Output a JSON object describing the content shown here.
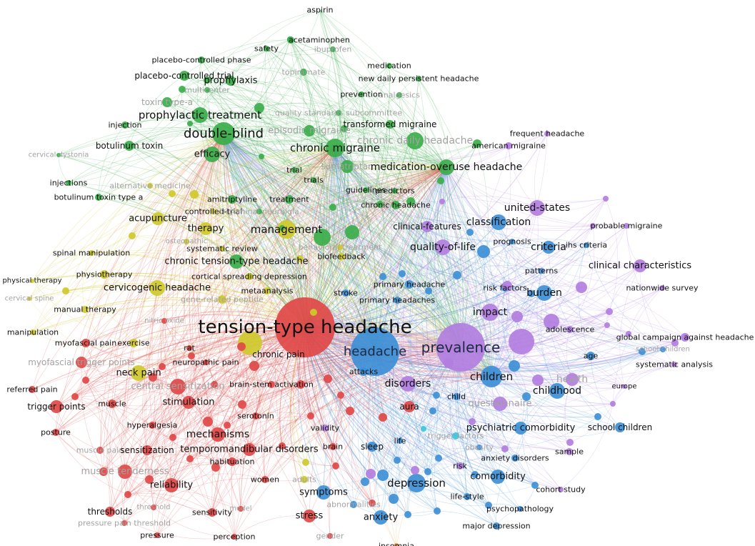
{
  "colors": {
    "red": "#e04848",
    "green": "#3aae4a",
    "blue": "#3d8fd6",
    "purple": "#b27ee0",
    "yellow": "#cfc92c",
    "cyan": "#39c6dc",
    "orange": "#f0a040"
  },
  "nodes": [
    {
      "label": "aspirin",
      "cluster": "green",
      "weight": 1,
      "dim": false
    },
    {
      "label": "safety",
      "cluster": "green",
      "weight": 1,
      "dim": false
    },
    {
      "label": "acetaminophen",
      "cluster": "green",
      "weight": 1,
      "dim": false
    },
    {
      "label": "ibuprofen",
      "cluster": "green",
      "weight": 1,
      "dim": true
    },
    {
      "label": "placebo-controlled phase",
      "cluster": "green",
      "weight": 1,
      "dim": false
    },
    {
      "label": "medication",
      "cluster": "green",
      "weight": 1,
      "dim": false
    },
    {
      "label": "new daily persistent headache",
      "cluster": "green",
      "weight": 1,
      "dim": false
    },
    {
      "label": "placebo-controlled trial",
      "cluster": "green",
      "weight": 2,
      "dim": false
    },
    {
      "label": "prophylaxis",
      "cluster": "green",
      "weight": 2,
      "dim": false
    },
    {
      "label": "topiramate",
      "cluster": "green",
      "weight": 1,
      "dim": true
    },
    {
      "label": "multicenter",
      "cluster": "green",
      "weight": 1,
      "dim": true
    },
    {
      "label": "prevention",
      "cluster": "green",
      "weight": 1,
      "dim": false
    },
    {
      "label": "analgesics",
      "cluster": "green",
      "weight": 1,
      "dim": true
    },
    {
      "label": "toxin type-a",
      "cluster": "green",
      "weight": 1,
      "dim": true
    },
    {
      "label": "prophylactic treatment",
      "cluster": "green",
      "weight": 3,
      "dim": false
    },
    {
      "label": "quality standards subcommittee",
      "cluster": "green",
      "weight": 1,
      "dim": true
    },
    {
      "label": "injection",
      "cluster": "green",
      "weight": 1,
      "dim": false
    },
    {
      "label": "transformed migraine",
      "cluster": "green",
      "weight": 1,
      "dim": false
    },
    {
      "label": "frequent headache",
      "cluster": "purple",
      "weight": 1,
      "dim": false
    },
    {
      "label": "double-blind",
      "cluster": "green",
      "weight": 4,
      "dim": false
    },
    {
      "label": "chronic migraine",
      "cluster": "green",
      "weight": 3,
      "dim": false
    },
    {
      "label": "episodic migraine",
      "cluster": "green",
      "weight": 2,
      "dim": true
    },
    {
      "label": "chronic daily headache",
      "cluster": "green",
      "weight": 3,
      "dim": true
    },
    {
      "label": "botulinum toxin",
      "cluster": "green",
      "weight": 2,
      "dim": false
    },
    {
      "label": "american migraine",
      "cluster": "purple",
      "weight": 1,
      "dim": false
    },
    {
      "label": "cervical dystonia",
      "cluster": "green",
      "weight": 1,
      "dim": true
    },
    {
      "label": "efficacy",
      "cluster": "green",
      "weight": 3,
      "dim": false
    },
    {
      "label": "sumatriptan",
      "cluster": "green",
      "weight": 2,
      "dim": true
    },
    {
      "label": "medication-overuse headache",
      "cluster": "green",
      "weight": 3,
      "dim": false
    },
    {
      "label": "trial",
      "cluster": "green",
      "weight": 1,
      "dim": false
    },
    {
      "label": "trials",
      "cluster": "green",
      "weight": 1,
      "dim": false
    },
    {
      "label": "injections",
      "cluster": "green",
      "weight": 1,
      "dim": false
    },
    {
      "label": "alternative medicine",
      "cluster": "yellow",
      "weight": 1,
      "dim": true
    },
    {
      "label": "guidelines",
      "cluster": "green",
      "weight": 1,
      "dim": false
    },
    {
      "label": "predictors",
      "cluster": "green",
      "weight": 1,
      "dim": false
    },
    {
      "label": "botulinum toxin type a",
      "cluster": "green",
      "weight": 1,
      "dim": false
    },
    {
      "label": "amitriptyline",
      "cluster": "green",
      "weight": 1,
      "dim": false
    },
    {
      "label": "treatment",
      "cluster": "green",
      "weight": 1,
      "dim": false
    },
    {
      "label": "chronic headache",
      "cluster": "green",
      "weight": 1,
      "dim": false
    },
    {
      "label": "united-states",
      "cluster": "purple",
      "weight": 2,
      "dim": false
    },
    {
      "label": "controlled-trial",
      "cluster": "yellow",
      "weight": 1,
      "dim": false
    },
    {
      "label": "trigeminal neuralgia",
      "cluster": "green",
      "weight": 1,
      "dim": true
    },
    {
      "label": "acupuncture",
      "cluster": "yellow",
      "weight": 2,
      "dim": false
    },
    {
      "label": "classification",
      "cluster": "blue",
      "weight": 2,
      "dim": false
    },
    {
      "label": "probable migraine",
      "cluster": "purple",
      "weight": 1,
      "dim": false
    },
    {
      "label": "therapy",
      "cluster": "yellow",
      "weight": 2,
      "dim": false
    },
    {
      "label": "management",
      "cluster": "yellow",
      "weight": 3,
      "dim": false
    },
    {
      "label": "clinical-features",
      "cluster": "purple",
      "weight": 1,
      "dim": false
    },
    {
      "label": "osteopathic",
      "cluster": "yellow",
      "weight": 1,
      "dim": true
    },
    {
      "label": "prognosis",
      "cluster": "blue",
      "weight": 1,
      "dim": false
    },
    {
      "label": "ihs criteria",
      "cluster": "blue",
      "weight": 1,
      "dim": false
    },
    {
      "label": "quality-of-life",
      "cluster": "purple",
      "weight": 2,
      "dim": false
    },
    {
      "label": "criteria",
      "cluster": "blue",
      "weight": 2,
      "dim": false
    },
    {
      "label": "systematic review",
      "cluster": "yellow",
      "weight": 1,
      "dim": false
    },
    {
      "label": "behavioral treatment",
      "cluster": "yellow",
      "weight": 1,
      "dim": true
    },
    {
      "label": "biofeedback",
      "cluster": "yellow",
      "weight": 1,
      "dim": false
    },
    {
      "label": "spinal manipulation",
      "cluster": "yellow",
      "weight": 1,
      "dim": false
    },
    {
      "label": "chronic tension-type headache",
      "cluster": "green",
      "weight": 2,
      "dim": false
    },
    {
      "label": "clinical characteristics",
      "cluster": "purple",
      "weight": 2,
      "dim": false
    },
    {
      "label": "patterns",
      "cluster": "blue",
      "weight": 1,
      "dim": false
    },
    {
      "label": "physiotherapy",
      "cluster": "yellow",
      "weight": 1,
      "dim": false
    },
    {
      "label": "cortical spreading depression",
      "cluster": "yellow",
      "weight": 1,
      "dim": false
    },
    {
      "label": "physical therapy",
      "cluster": "yellow",
      "weight": 1,
      "dim": false
    },
    {
      "label": "primary headache",
      "cluster": "blue",
      "weight": 1,
      "dim": false
    },
    {
      "label": "risk factors",
      "cluster": "blue",
      "weight": 1,
      "dim": false
    },
    {
      "label": "nationwide survey",
      "cluster": "purple",
      "weight": 1,
      "dim": false
    },
    {
      "label": "cervicogenic headache",
      "cluster": "yellow",
      "weight": 2,
      "dim": false
    },
    {
      "label": "burden",
      "cluster": "blue",
      "weight": 2,
      "dim": false
    },
    {
      "label": "cervical spine",
      "cluster": "yellow",
      "weight": 1,
      "dim": true
    },
    {
      "label": "gene-related peptide",
      "cluster": "yellow",
      "weight": 1,
      "dim": true
    },
    {
      "label": "metaanalysis",
      "cluster": "yellow",
      "weight": 1,
      "dim": false
    },
    {
      "label": "stroke",
      "cluster": "blue",
      "weight": 1,
      "dim": false
    },
    {
      "label": "primary headaches",
      "cluster": "blue",
      "weight": 1,
      "dim": false
    },
    {
      "label": "manual therapy",
      "cluster": "yellow",
      "weight": 1,
      "dim": false
    },
    {
      "label": "nitric oxide",
      "cluster": "red",
      "weight": 1,
      "dim": true
    },
    {
      "label": "impact",
      "cluster": "purple",
      "weight": 2,
      "dim": false
    },
    {
      "label": "tension-type headache",
      "cluster": "red",
      "weight": 6,
      "dim": false
    },
    {
      "label": "adolescence",
      "cluster": "purple",
      "weight": 1,
      "dim": false
    },
    {
      "label": "manipulation",
      "cluster": "yellow",
      "weight": 1,
      "dim": false
    },
    {
      "label": "global campaign against headache",
      "cluster": "purple",
      "weight": 1,
      "dim": false
    },
    {
      "label": "myofascial pain",
      "cluster": "red",
      "weight": 1,
      "dim": false
    },
    {
      "label": "exercise",
      "cluster": "yellow",
      "weight": 1,
      "dim": false
    },
    {
      "label": "rat",
      "cluster": "red",
      "weight": 1,
      "dim": false
    },
    {
      "label": "headache",
      "cluster": "blue",
      "weight": 5,
      "dim": false
    },
    {
      "label": "prevalence",
      "cluster": "purple",
      "weight": 5,
      "dim": false
    },
    {
      "label": "school-children",
      "cluster": "blue",
      "weight": 1,
      "dim": true
    },
    {
      "label": "age",
      "cluster": "blue",
      "weight": 1,
      "dim": false
    },
    {
      "label": "myofascial trigger points",
      "cluster": "red",
      "weight": 2,
      "dim": true
    },
    {
      "label": "chronic pain",
      "cluster": "yellow",
      "weight": 2,
      "dim": false
    },
    {
      "label": "systematic analysis",
      "cluster": "purple",
      "weight": 1,
      "dim": false
    },
    {
      "label": "neuropathic pain",
      "cluster": "red",
      "weight": 1,
      "dim": false
    },
    {
      "label": "attacks",
      "cluster": "blue",
      "weight": 1,
      "dim": false
    },
    {
      "label": "health",
      "cluster": "purple",
      "weight": 2,
      "dim": true
    },
    {
      "label": "neck pain",
      "cluster": "yellow",
      "weight": 2,
      "dim": false
    },
    {
      "label": "children",
      "cluster": "blue",
      "weight": 3,
      "dim": false
    },
    {
      "label": "disorders",
      "cluster": "purple",
      "weight": 2,
      "dim": false
    },
    {
      "label": "europe",
      "cluster": "purple",
      "weight": 1,
      "dim": false
    },
    {
      "label": "central sensitization",
      "cluster": "red",
      "weight": 2,
      "dim": true
    },
    {
      "label": "brain-stem activation",
      "cluster": "red",
      "weight": 1,
      "dim": false
    },
    {
      "label": "childhood",
      "cluster": "blue",
      "weight": 2,
      "dim": false
    },
    {
      "label": "referred pain",
      "cluster": "red",
      "weight": 1,
      "dim": false
    },
    {
      "label": "child",
      "cluster": "blue",
      "weight": 1,
      "dim": false
    },
    {
      "label": "questionnaire",
      "cluster": "purple",
      "weight": 2,
      "dim": true
    },
    {
      "label": "trigger points",
      "cluster": "red",
      "weight": 2,
      "dim": false
    },
    {
      "label": "muscle",
      "cluster": "red",
      "weight": 1,
      "dim": false
    },
    {
      "label": "stimulation",
      "cluster": "red",
      "weight": 2,
      "dim": false
    },
    {
      "label": "aura",
      "cluster": "red",
      "weight": 2,
      "dim": false
    },
    {
      "label": "serotonin",
      "cluster": "red",
      "weight": 1,
      "dim": false
    },
    {
      "label": "psychiatric comorbidity",
      "cluster": "blue",
      "weight": 2,
      "dim": false
    },
    {
      "label": "school children",
      "cluster": "blue",
      "weight": 1,
      "dim": false
    },
    {
      "label": "hyperalgesia",
      "cluster": "red",
      "weight": 1,
      "dim": false
    },
    {
      "label": "posture",
      "cluster": "red",
      "weight": 1,
      "dim": false
    },
    {
      "label": "mechanisms",
      "cluster": "red",
      "weight": 2,
      "dim": false
    },
    {
      "label": "validity",
      "cluster": "purple",
      "weight": 1,
      "dim": false
    },
    {
      "label": "trigger factors",
      "cluster": "cyan",
      "weight": 1,
      "dim": true
    },
    {
      "label": "sample",
      "cluster": "purple",
      "weight": 1,
      "dim": false
    },
    {
      "label": "muscle pain",
      "cluster": "red",
      "weight": 1,
      "dim": true
    },
    {
      "label": "sensitization",
      "cluster": "red",
      "weight": 1,
      "dim": false
    },
    {
      "label": "temporomandibular disorders",
      "cluster": "red",
      "weight": 2,
      "dim": false
    },
    {
      "label": "obesity",
      "cluster": "blue",
      "weight": 1,
      "dim": true
    },
    {
      "label": "anxiety disorders",
      "cluster": "blue",
      "weight": 1,
      "dim": false
    },
    {
      "label": "brain",
      "cluster": "red",
      "weight": 1,
      "dim": false
    },
    {
      "label": "sleep",
      "cluster": "blue",
      "weight": 1,
      "dim": false
    },
    {
      "label": "life",
      "cluster": "blue",
      "weight": 1,
      "dim": false
    },
    {
      "label": "habituation",
      "cluster": "red",
      "weight": 1,
      "dim": false
    },
    {
      "label": "risk",
      "cluster": "purple",
      "weight": 1,
      "dim": false
    },
    {
      "label": "muscle tenderness",
      "cluster": "red",
      "weight": 2,
      "dim": true
    },
    {
      "label": "comorbidity",
      "cluster": "blue",
      "weight": 2,
      "dim": false
    },
    {
      "label": "women",
      "cluster": "red",
      "weight": 1,
      "dim": false
    },
    {
      "label": "adults",
      "cluster": "yellow",
      "weight": 1,
      "dim": true
    },
    {
      "label": "reliability",
      "cluster": "red",
      "weight": 2,
      "dim": false
    },
    {
      "label": "depression",
      "cluster": "blue",
      "weight": 3,
      "dim": false
    },
    {
      "label": "cohort study",
      "cluster": "purple",
      "weight": 1,
      "dim": false
    },
    {
      "label": "symptoms",
      "cluster": "blue",
      "weight": 2,
      "dim": false
    },
    {
      "label": "life-style",
      "cluster": "blue",
      "weight": 1,
      "dim": false
    },
    {
      "label": "abnormalities",
      "cluster": "blue",
      "weight": 1,
      "dim": true
    },
    {
      "label": "thresholds",
      "cluster": "red",
      "weight": 2,
      "dim": false
    },
    {
      "label": "threshold",
      "cluster": "red",
      "weight": 1,
      "dim": true
    },
    {
      "label": "sensitivity",
      "cluster": "red",
      "weight": 1,
      "dim": false
    },
    {
      "label": "model",
      "cluster": "red",
      "weight": 1,
      "dim": true
    },
    {
      "label": "psychopathology",
      "cluster": "blue",
      "weight": 1,
      "dim": false
    },
    {
      "label": "stress",
      "cluster": "red",
      "weight": 2,
      "dim": false
    },
    {
      "label": "anxiety",
      "cluster": "blue",
      "weight": 2,
      "dim": false
    },
    {
      "label": "pressure pain threshold",
      "cluster": "red",
      "weight": 1,
      "dim": true
    },
    {
      "label": "major depression",
      "cluster": "blue",
      "weight": 1,
      "dim": false
    },
    {
      "label": "pressure",
      "cluster": "red",
      "weight": 1,
      "dim": false
    },
    {
      "label": "perception",
      "cluster": "red",
      "weight": 1,
      "dim": false
    },
    {
      "label": "gender",
      "cluster": "red",
      "weight": 1,
      "dim": true
    },
    {
      "label": "insomnia",
      "cluster": "orange",
      "weight": 1,
      "dim": false
    }
  ]
}
